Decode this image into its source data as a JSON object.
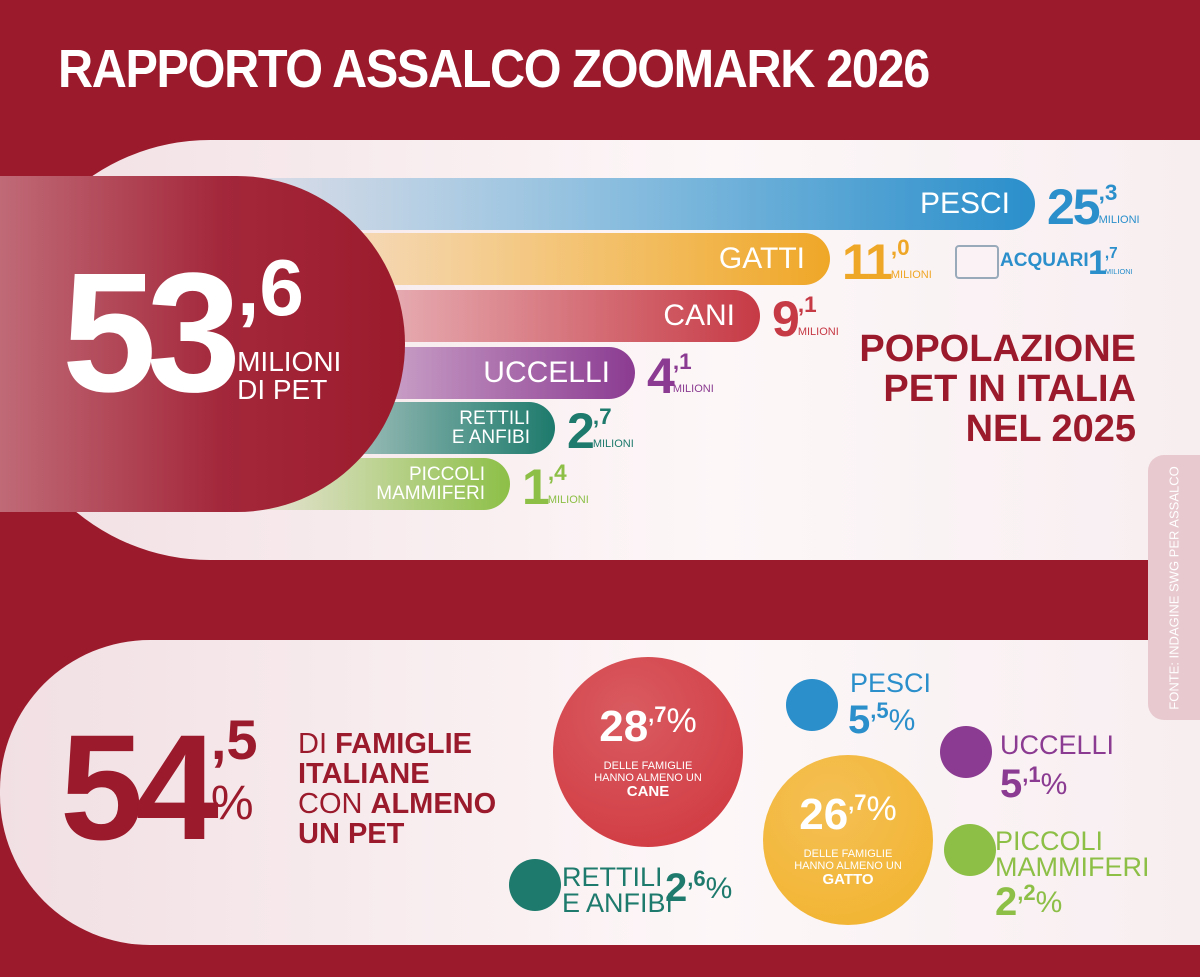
{
  "title": "RAPPORTO ASSALCO ZOOMARK 2026",
  "total": {
    "whole": "53",
    "decimal": ",6",
    "line1": "MILIONI",
    "line2": "DI PET"
  },
  "population": [
    {
      "label": [
        "PESCI"
      ],
      "whole": "25",
      "decimal": ",3",
      "unit": "MILIONI",
      "color": "#2a8fcb"
    },
    {
      "label": [
        "GATTI"
      ],
      "whole": "11",
      "decimal": ",0",
      "unit": "MILIONI",
      "color": "#efa727"
    },
    {
      "label": [
        "CANI"
      ],
      "whole": "9",
      "decimal": ",1",
      "unit": "MILIONI",
      "color": "#c63a45"
    },
    {
      "label": [
        "UCCELLI"
      ],
      "whole": "4",
      "decimal": ",1",
      "unit": "MILIONI",
      "color": "#8b3b91"
    },
    {
      "label": [
        "RETTILI",
        "E ANFIBI"
      ],
      "whole": "2",
      "decimal": ",7",
      "unit": "MILIONI",
      "color": "#1d7a6c"
    },
    {
      "label": [
        "PICCOLI",
        "MAMMIFERI"
      ],
      "whole": "1",
      "decimal": ",4",
      "unit": "MILIONI",
      "color": "#8dbf47"
    }
  ],
  "aquariums": {
    "label": "ACQUARI",
    "whole": "1",
    "decimal": ",7",
    "unit": "MILIONI"
  },
  "population_title": [
    "POPOLAZIONE",
    "PET IN ITALIA",
    "NEL 2025"
  ],
  "source": "FONTE: INDAGINE SWG PER ASSALCO",
  "families": {
    "whole": "54",
    "decimal": ",5",
    "percent": "%",
    "lines": [
      [
        {
          "text": "DI ",
          "bold": false
        },
        {
          "text": "FAMIGLIE",
          "bold": true
        }
      ],
      [
        {
          "text": "ITALIANE",
          "bold": true
        }
      ],
      [
        {
          "text": "CON ",
          "bold": false
        },
        {
          "text": "ALMENO",
          "bold": true
        }
      ],
      [
        {
          "text": "UN PET",
          "bold": true
        }
      ]
    ]
  },
  "big_circles": [
    {
      "whole": "28",
      "decimal": ",7",
      "percent": "%",
      "caption": [
        "DELLE FAMIGLIE",
        "HANNO ALMENO UN"
      ],
      "animal": "CANE",
      "color": "#d0353c"
    },
    {
      "whole": "26",
      "decimal": ",7",
      "percent": "%",
      "caption": [
        "DELLE FAMIGLIE",
        "HANNO ALMENO UN"
      ],
      "animal": "GATTO",
      "color": "#f2b22b"
    }
  ],
  "small_items": [
    {
      "label": [
        "PESCI"
      ],
      "whole": "5",
      "decimal": ",5",
      "percent": "%",
      "color": "#2a8fcb"
    },
    {
      "label": [
        "UCCELLI"
      ],
      "whole": "5",
      "decimal": ",1",
      "percent": "%",
      "color": "#8b3b91"
    },
    {
      "label": [
        "PICCOLI",
        "MAMMIFERI"
      ],
      "whole": "2",
      "decimal": ",2",
      "percent": "%",
      "color": "#8dbf47"
    },
    {
      "label": [
        "RETTILI",
        "E ANFIBI"
      ],
      "whole": "2",
      "decimal": ",6",
      "percent": "%",
      "color": "#1d7a6c"
    }
  ]
}
